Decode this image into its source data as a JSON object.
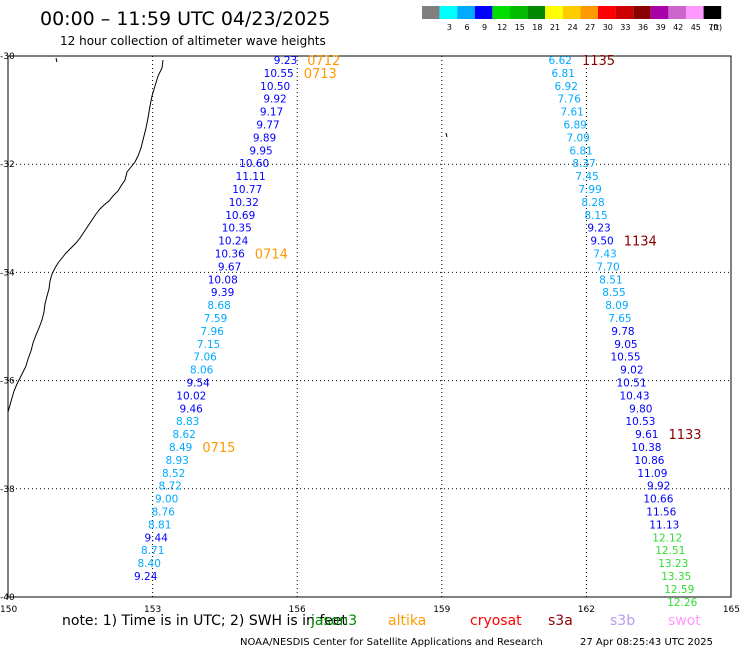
{
  "title": "00:00 – 11:59 UTC 04/23/2025",
  "subtitle": "12 hour collection of altimeter wave heights",
  "legend": {
    "unit": "(ft)",
    "swatches": [
      {
        "label": "",
        "color": "#808080"
      },
      {
        "label": "3",
        "color": "#00ffff"
      },
      {
        "label": "6",
        "color": "#00aaff"
      },
      {
        "label": "9",
        "color": "#0000ff"
      },
      {
        "label": "12",
        "color": "#00dd00"
      },
      {
        "label": "15",
        "color": "#00bb00"
      },
      {
        "label": "18",
        "color": "#008800"
      },
      {
        "label": "21",
        "color": "#ffff00"
      },
      {
        "label": "24",
        "color": "#ffcc00"
      },
      {
        "label": "27",
        "color": "#ff9900"
      },
      {
        "label": "30",
        "color": "#ff0000"
      },
      {
        "label": "33",
        "color": "#cc0000"
      },
      {
        "label": "36",
        "color": "#880000"
      },
      {
        "label": "39",
        "color": "#aa00aa"
      },
      {
        "label": "42",
        "color": "#cc66cc"
      },
      {
        "label": "45",
        "color": "#ff99ff"
      },
      {
        "label": "70",
        "color": "#000000"
      }
    ]
  },
  "map": {
    "lon_min": 150,
    "lon_max": 165,
    "lat_top": -30,
    "lat_bottom": -40,
    "lon_ticks": [
      "150",
      "153",
      "156",
      "159",
      "162",
      "165"
    ],
    "lat_ticks": [
      "-30",
      "-32",
      "-34",
      "-36",
      "-38",
      "-40"
    ]
  },
  "tracks": [
    {
      "lon_start": 156.0,
      "lon_end": 153.1,
      "labels": [
        "9.23",
        "10.55",
        "10.50",
        "9.92",
        "9.17",
        "9.77",
        "9.89",
        "9.95",
        "10.60",
        "11.11",
        "10.77",
        "10.32",
        "10.69",
        "10.35",
        "10.24",
        "10.36",
        "9.67",
        "10.08",
        "9.39",
        "8.68",
        "7.59",
        "7.96",
        "7.15",
        "7.06",
        "8.06",
        "9.54",
        "10.02",
        "9.46",
        "8.83",
        "8.62",
        "8.49",
        "8.93",
        "8.52",
        "8.72",
        "9.00",
        "8.76",
        "8.81",
        "9.44",
        "8.71",
        "8.40",
        "9.24"
      ],
      "colors": [
        "#0000ff",
        "#0000ff",
        "#0000ff",
        "#0000ff",
        "#0000ff",
        "#0000ff",
        "#0000ff",
        "#0000ff",
        "#0000ff",
        "#0000ff",
        "#0000ff",
        "#0000ff",
        "#0000ff",
        "#0000ff",
        "#0000ff",
        "#0000ff",
        "#0000ff",
        "#0000ff",
        "#0000ff",
        "#00aaff",
        "#00aaff",
        "#00aaff",
        "#00aaff",
        "#00aaff",
        "#00aaff",
        "#0000ff",
        "#0000ff",
        "#0000ff",
        "#00aaff",
        "#00aaff",
        "#00aaff",
        "#00aaff",
        "#00aaff",
        "#00aaff",
        "#00aaff",
        "#00aaff",
        "#00aaff",
        "#0000ff",
        "#00aaff",
        "#00aaff",
        "#0000ff"
      ],
      "times": [
        {
          "label": "0712",
          "index": 0
        },
        {
          "label": "0713",
          "index": 1
        },
        {
          "label": "0714",
          "index": 15
        },
        {
          "label": "0715",
          "index": 30
        }
      ],
      "time_color": "#ff9900"
    },
    {
      "lon_start": 161.7,
      "lon_end": 164.3,
      "labels": [
        "6.62",
        "6.81",
        "6.92",
        "7.76",
        "7.61",
        "6.89",
        "7.09",
        "6.81",
        "8.37",
        "7.45",
        "7.99",
        "8.28",
        "8.15",
        "9.23",
        "9.50",
        "7.43",
        "7.70",
        "8.51",
        "8.55",
        "8.09",
        "7.65",
        "9.78",
        "9.05",
        "10.55",
        "9.02",
        "10.51",
        "10.43",
        "9.80",
        "10.53",
        "9.61",
        "10.38",
        "10.86",
        "11.09",
        "9.92",
        "10.66",
        "11.56",
        "11.13",
        "12.12",
        "12.51",
        "13.23",
        "13.35",
        "12.59",
        "12.26"
      ],
      "colors": [
        "#00aaff",
        "#00aaff",
        "#00aaff",
        "#00aaff",
        "#00aaff",
        "#00aaff",
        "#00aaff",
        "#00aaff",
        "#00aaff",
        "#00aaff",
        "#00aaff",
        "#00aaff",
        "#00aaff",
        "#0000ff",
        "#0000ff",
        "#00aaff",
        "#00aaff",
        "#00aaff",
        "#00aaff",
        "#00aaff",
        "#00aaff",
        "#0000ff",
        "#0000ff",
        "#0000ff",
        "#0000ff",
        "#0000ff",
        "#0000ff",
        "#0000ff",
        "#0000ff",
        "#0000ff",
        "#0000ff",
        "#0000ff",
        "#0000ff",
        "#0000ff",
        "#0000ff",
        "#0000ff",
        "#0000ff",
        "#33dd33",
        "#33dd33",
        "#33dd33",
        "#33dd33",
        "#33dd33",
        "#33dd33"
      ],
      "times": [
        {
          "label": "1135",
          "index": 0
        },
        {
          "label": "1134",
          "index": 14
        },
        {
          "label": "1133",
          "index": 29
        }
      ],
      "time_color": "#880000"
    }
  ],
  "footer": {
    "note": "note: 1) Time is in UTC; 2) SWH is in feet",
    "satellites": [
      {
        "name": "jason3",
        "color": "#008800"
      },
      {
        "name": "altika",
        "color": "#ff9900"
      },
      {
        "name": "cryosat",
        "color": "#ff0000"
      },
      {
        "name": "s3a",
        "color": "#880000"
      },
      {
        "name": "s3b",
        "color": "#bb99ee"
      },
      {
        "name": "swot",
        "color": "#ff99ff"
      }
    ],
    "credit": "NOAA/NESDIS Center for Satellite Applications and Research",
    "timestamp": "27 Apr 08:25:43 UTC 2025"
  },
  "icons": [
    "coastline-icon"
  ]
}
